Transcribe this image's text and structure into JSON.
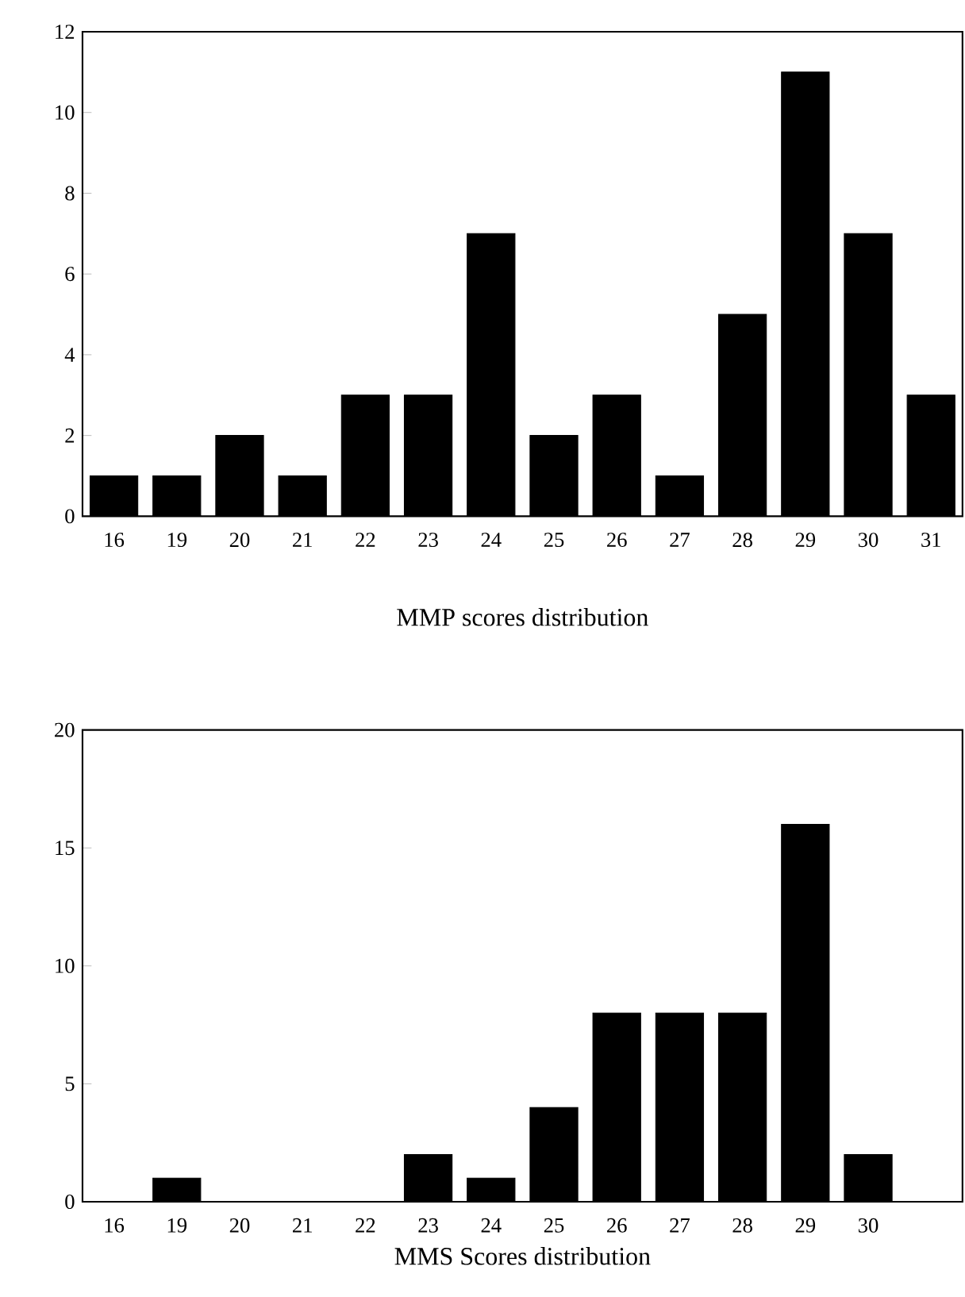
{
  "chart_data": [
    {
      "type": "bar",
      "xlabel": "MMP scores distribution",
      "categories": [
        "16",
        "19",
        "20",
        "21",
        "22",
        "23",
        "24",
        "25",
        "26",
        "27",
        "28",
        "29",
        "30",
        "31"
      ],
      "values": [
        1,
        1,
        2,
        1,
        3,
        3,
        7,
        2,
        3,
        1,
        5,
        11,
        7,
        3
      ],
      "color": "#000000",
      "ylim": [
        0,
        12
      ],
      "yticks": [
        0,
        2,
        4,
        6,
        8,
        10,
        12
      ]
    },
    {
      "type": "bar",
      "xlabel": "MMS Scores distribution",
      "categories": [
        "16",
        "19",
        "20",
        "21",
        "22",
        "23",
        "24",
        "25",
        "26",
        "27",
        "28",
        "29",
        "30"
      ],
      "values": [
        0,
        1,
        0,
        0,
        0,
        2,
        1,
        4,
        8,
        8,
        8,
        16,
        2
      ],
      "color": "#000000",
      "ylim": [
        0,
        20
      ],
      "yticks": [
        0,
        5,
        10,
        15,
        20
      ]
    }
  ]
}
